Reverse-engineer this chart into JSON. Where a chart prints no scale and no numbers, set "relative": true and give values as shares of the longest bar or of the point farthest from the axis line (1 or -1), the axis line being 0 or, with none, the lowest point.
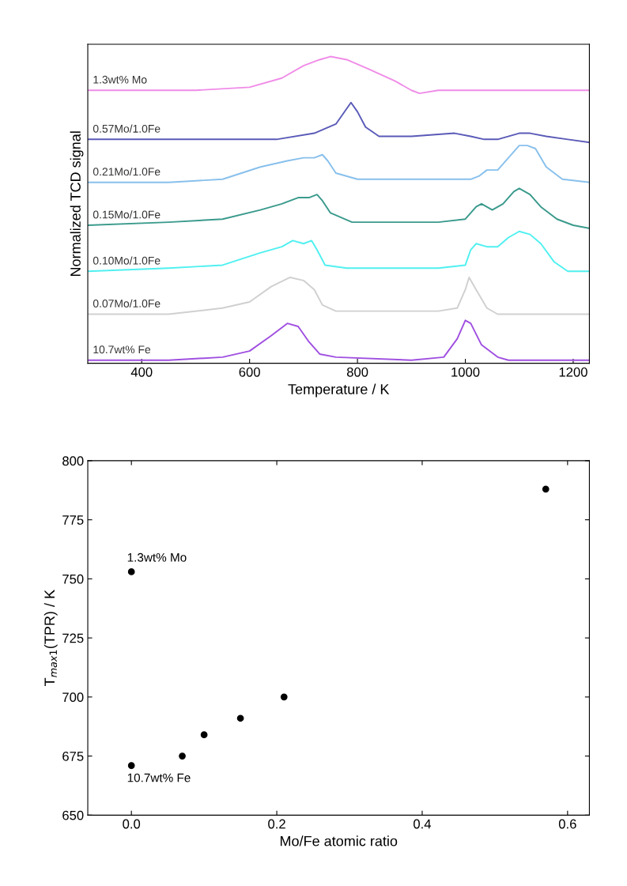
{
  "chart_data": [
    {
      "type": "line",
      "relative": true,
      "xlabel": "Temperature / K",
      "ylabel": "Normalized TCD signal",
      "xlim": [
        300,
        1230
      ],
      "xticks": [
        400,
        600,
        800,
        1000,
        1200
      ],
      "tick_labels": "x",
      "legend": false,
      "grid": false,
      "series": [
        {
          "name": "1.3wt% Mo",
          "color": "#f08ce8",
          "x": [
            300,
            500,
            600,
            660,
            700,
            730,
            750,
            780,
            820,
            870,
            900,
            915,
            950,
            1100,
            1230
          ],
          "values": [
            0.89,
            0.89,
            0.9,
            0.93,
            0.97,
            0.99,
            1,
            0.99,
            0.96,
            0.92,
            0.89,
            0.88,
            0.89,
            0.89,
            0.89
          ]
        },
        {
          "name": "0.57Mo/1.0Fe",
          "color": "#5a5ab8",
          "x": [
            300,
            500,
            650,
            720,
            760,
            780,
            788,
            800,
            815,
            840,
            900,
            980,
            1010,
            1035,
            1060,
            1100,
            1120,
            1150,
            1190,
            1230
          ],
          "values": [
            0.73,
            0.73,
            0.73,
            0.75,
            0.78,
            0.83,
            0.85,
            0.82,
            0.77,
            0.74,
            0.74,
            0.75,
            0.74,
            0.73,
            0.73,
            0.75,
            0.75,
            0.74,
            0.73,
            0.72
          ]
        },
        {
          "name": "0.21Mo/1.0Fe",
          "color": "#88c0ec",
          "x": [
            300,
            450,
            550,
            620,
            670,
            700,
            720,
            735,
            745,
            760,
            800,
            950,
            1010,
            1025,
            1040,
            1060,
            1080,
            1100,
            1115,
            1130,
            1150,
            1180,
            1230
          ],
          "values": [
            0.59,
            0.59,
            0.6,
            0.64,
            0.66,
            0.67,
            0.67,
            0.68,
            0.66,
            0.62,
            0.6,
            0.6,
            0.6,
            0.61,
            0.63,
            0.63,
            0.67,
            0.71,
            0.71,
            0.7,
            0.64,
            0.6,
            0.59
          ]
        },
        {
          "name": "0.15Mo/1.0Fe",
          "color": "#3a9a8c",
          "x": [
            300,
            450,
            550,
            620,
            660,
            690,
            710,
            725,
            735,
            750,
            790,
            950,
            1000,
            1020,
            1030,
            1050,
            1070,
            1090,
            1100,
            1120,
            1140,
            1170,
            1200,
            1230
          ],
          "values": [
            0.45,
            0.46,
            0.47,
            0.5,
            0.52,
            0.54,
            0.54,
            0.55,
            0.53,
            0.49,
            0.46,
            0.46,
            0.47,
            0.51,
            0.52,
            0.5,
            0.52,
            0.56,
            0.57,
            0.55,
            0.51,
            0.47,
            0.45,
            0.44
          ]
        },
        {
          "name": "0.10Mo/1.0Fe",
          "color": "#50f0f0",
          "x": [
            300,
            450,
            550,
            620,
            660,
            680,
            700,
            715,
            725,
            740,
            780,
            950,
            1000,
            1010,
            1020,
            1040,
            1060,
            1080,
            1100,
            1120,
            1140,
            1165,
            1190,
            1230
          ],
          "values": [
            0.3,
            0.31,
            0.32,
            0.36,
            0.38,
            0.4,
            0.39,
            0.4,
            0.37,
            0.32,
            0.31,
            0.31,
            0.32,
            0.37,
            0.39,
            0.38,
            0.38,
            0.41,
            0.43,
            0.42,
            0.39,
            0.33,
            0.3,
            0.3
          ]
        },
        {
          "name": "0.07Mo/1.0Fe",
          "color": "#d0d0d0",
          "x": [
            300,
            450,
            550,
            600,
            640,
            675,
            700,
            720,
            735,
            760,
            900,
            950,
            985,
            1000,
            1007,
            1020,
            1040,
            1060,
            1230
          ],
          "values": [
            0.16,
            0.16,
            0.18,
            0.2,
            0.25,
            0.28,
            0.27,
            0.24,
            0.19,
            0.17,
            0.17,
            0.17,
            0.18,
            0.24,
            0.28,
            0.24,
            0.18,
            0.16,
            0.16
          ]
        },
        {
          "name": "10.7wt% Fe",
          "color": "#a050e0",
          "x": [
            300,
            450,
            550,
            600,
            640,
            670,
            690,
            710,
            730,
            760,
            900,
            960,
            985,
            1000,
            1010,
            1030,
            1060,
            1080,
            1230
          ],
          "values": [
            0.01,
            0.01,
            0.02,
            0.04,
            0.09,
            0.13,
            0.12,
            0.07,
            0.03,
            0.02,
            0.01,
            0.02,
            0.08,
            0.14,
            0.13,
            0.06,
            0.02,
            0.01,
            0.01
          ]
        }
      ]
    },
    {
      "type": "scatter",
      "xlabel": "Mo/Fe atomic ratio",
      "ylabel": "T$_{max1}$(TPR) / K",
      "xlim": [
        -0.06,
        0.63
      ],
      "xticks": [
        {
          "value": 0,
          "label": "0.0"
        },
        0.2,
        0.4,
        0.6
      ],
      "ylim": [
        650,
        800
      ],
      "yticks": [
        650,
        675,
        700,
        725,
        750,
        775,
        800
      ],
      "legend": false,
      "grid": false,
      "marker": "circle",
      "series": [
        {
          "color": "#000000",
          "x": [
            0,
            0.07,
            0.1,
            0.15,
            0.21,
            0.57,
            0
          ],
          "values": [
            671,
            675,
            684,
            691,
            700,
            788,
            753
          ]
        }
      ],
      "annotations": [
        {
          "text": "1.3wt% Mo",
          "x": 0,
          "y": 753
        },
        {
          "text": "10.7wt% Fe",
          "x": 0,
          "y": 671
        }
      ]
    }
  ]
}
